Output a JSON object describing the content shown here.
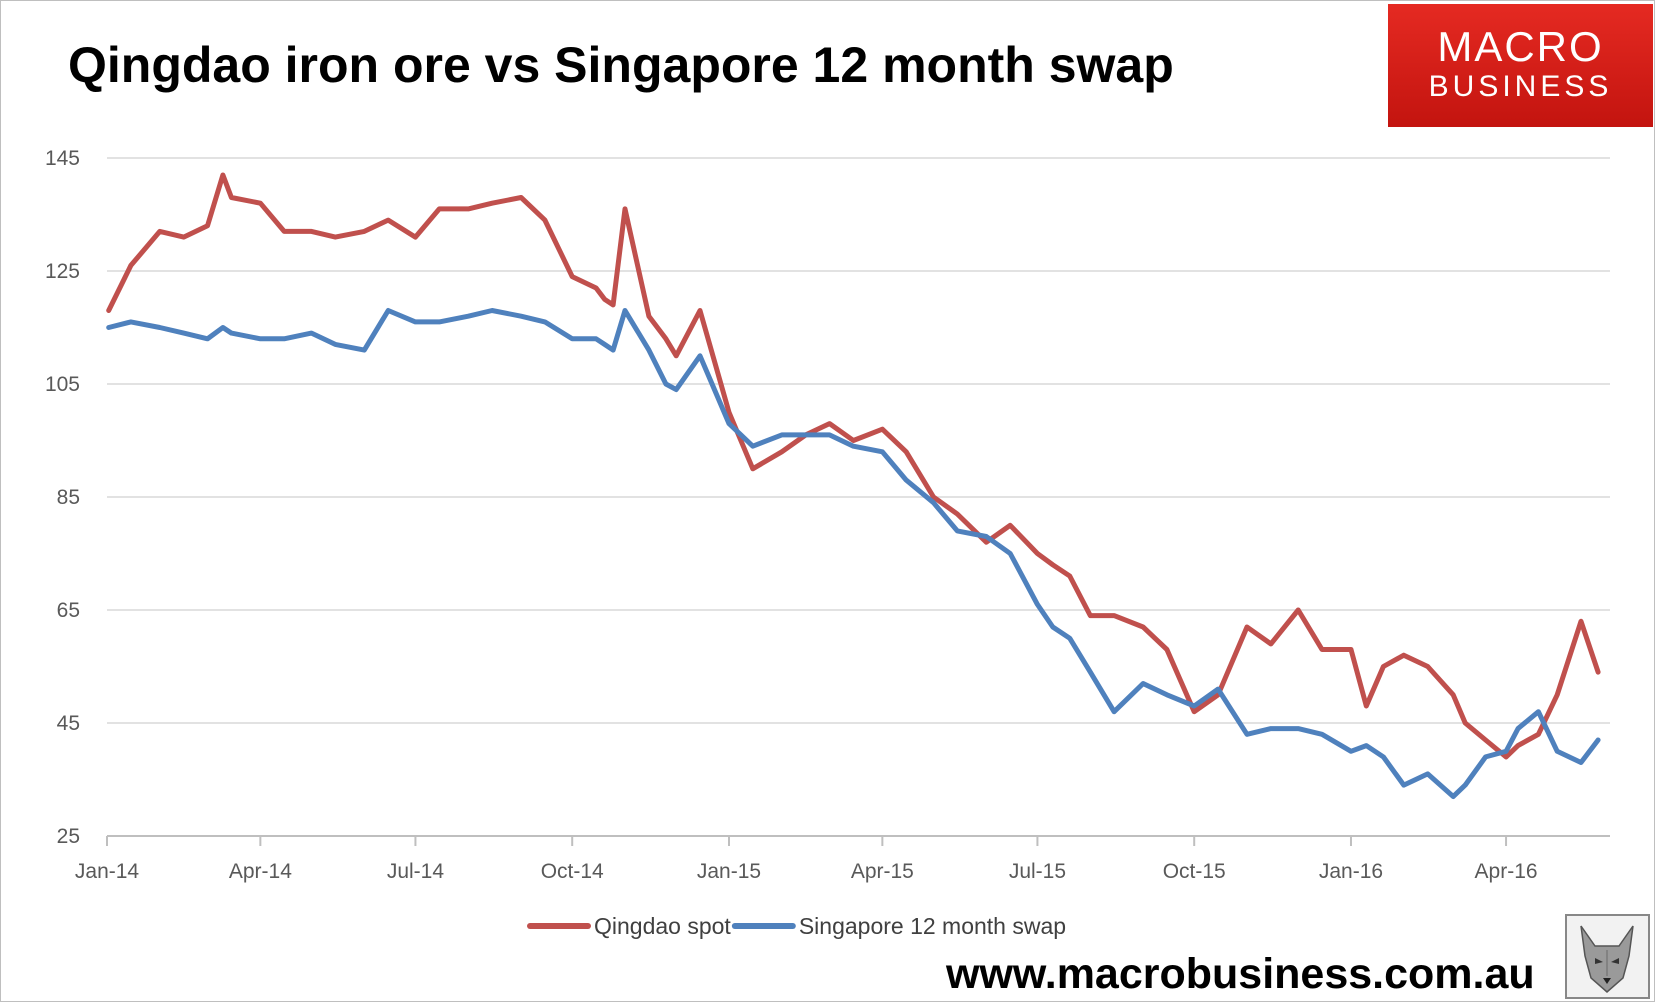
{
  "title": "Qingdao iron ore vs Singapore 12 month swap",
  "logo": {
    "line1": "MACRO",
    "line2": "BUSINESS",
    "color": "#d41f18"
  },
  "footer_url": "www.macrobusiness.com.au",
  "mascot_icon": "wolf-icon",
  "chart_data": {
    "type": "line",
    "title": "Qingdao iron ore vs Singapore 12 month swap",
    "xlabel": "",
    "ylabel": "",
    "ylim": [
      25,
      145
    ],
    "yticks": [
      25,
      45,
      65,
      85,
      105,
      125,
      145
    ],
    "grid": true,
    "legend_position": "bottom",
    "x_tick_labels": [
      "Jan-14",
      "Apr-14",
      "Jul-14",
      "Oct-14",
      "Jan-15",
      "Apr-15",
      "Jul-15",
      "Oct-15",
      "Jan-16",
      "Apr-16"
    ],
    "x": [
      "2014-01-02",
      "2014-01-15",
      "2014-02-01",
      "2014-02-15",
      "2014-03-01",
      "2014-03-10",
      "2014-03-15",
      "2014-04-01",
      "2014-04-15",
      "2014-05-01",
      "2014-05-15",
      "2014-06-01",
      "2014-06-15",
      "2014-07-01",
      "2014-07-15",
      "2014-08-01",
      "2014-08-15",
      "2014-09-01",
      "2014-09-15",
      "2014-10-01",
      "2014-10-15",
      "2014-10-20",
      "2014-10-25",
      "2014-11-01",
      "2014-11-15",
      "2014-11-25",
      "2014-12-01",
      "2014-12-15",
      "2015-01-01",
      "2015-01-15",
      "2015-02-01",
      "2015-02-15",
      "2015-03-01",
      "2015-03-15",
      "2015-04-01",
      "2015-04-15",
      "2015-05-01",
      "2015-05-15",
      "2015-06-01",
      "2015-06-15",
      "2015-07-01",
      "2015-07-10",
      "2015-07-20",
      "2015-08-01",
      "2015-08-15",
      "2015-09-01",
      "2015-09-15",
      "2015-10-01",
      "2015-10-15",
      "2015-11-01",
      "2015-11-15",
      "2015-12-01",
      "2015-12-15",
      "2016-01-01",
      "2016-01-10",
      "2016-01-20",
      "2016-02-01",
      "2016-02-15",
      "2016-03-01",
      "2016-03-08",
      "2016-03-20",
      "2016-04-01",
      "2016-04-08",
      "2016-04-20",
      "2016-05-01",
      "2016-05-15",
      "2016-05-25"
    ],
    "series": [
      {
        "name": "Qingdao spot",
        "color": "#c0504d",
        "values": [
          118,
          126,
          132,
          131,
          133,
          142,
          138,
          137,
          132,
          132,
          131,
          132,
          134,
          131,
          136,
          136,
          137,
          138,
          134,
          124,
          122,
          120,
          119,
          136,
          117,
          113,
          110,
          118,
          100,
          90,
          93,
          96,
          98,
          95,
          97,
          93,
          85,
          82,
          77,
          80,
          75,
          73,
          71,
          64,
          64,
          62,
          58,
          47,
          50,
          62,
          59,
          65,
          58,
          58,
          48,
          55,
          57,
          55,
          50,
          45,
          42,
          39,
          41,
          43,
          50,
          63,
          54
        ]
      },
      {
        "name": "Singapore 12 month swap",
        "color": "#4f81bd",
        "values": [
          115,
          116,
          115,
          114,
          113,
          115,
          114,
          113,
          113,
          114,
          112,
          111,
          118,
          116,
          116,
          117,
          118,
          117,
          116,
          113,
          113,
          112,
          111,
          118,
          111,
          105,
          104,
          110,
          98,
          94,
          96,
          96,
          96,
          94,
          93,
          88,
          84,
          79,
          78,
          75,
          66,
          62,
          60,
          54,
          47,
          52,
          50,
          48,
          51,
          43,
          44,
          44,
          43,
          40,
          41,
          39,
          34,
          36,
          32,
          34,
          39,
          40,
          44,
          47,
          40,
          38,
          42
        ]
      }
    ]
  }
}
